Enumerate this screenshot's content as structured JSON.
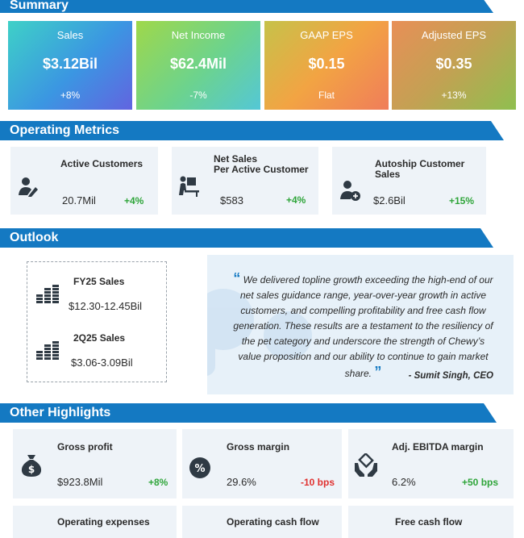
{
  "sections": {
    "summary": "Summary",
    "operating_metrics": "Operating Metrics",
    "outlook": "Outlook",
    "other_highlights": "Other Highlights"
  },
  "summary_cards": [
    {
      "title": "Sales",
      "value": "$3.12Bil",
      "change": "+8%"
    },
    {
      "title": "Net Income",
      "value": "$62.4Mil",
      "change": "-7%"
    },
    {
      "title": "GAAP EPS",
      "value": "$0.15",
      "change": "Flat"
    },
    {
      "title": "Adjusted EPS",
      "value": "$0.35",
      "change": "+13%"
    }
  ],
  "operating_metrics": [
    {
      "title": "Active Customers",
      "value": "20.7Mil",
      "change": "+4%",
      "icon": "user-edit-icon"
    },
    {
      "title_line1": "Net Sales",
      "title_line2": "Per Active Customer",
      "value": "$583",
      "change": "+4%",
      "icon": "desk-user-icon"
    },
    {
      "title": "Autoship Customer Sales",
      "value": "$2.6Bil",
      "change": "+15%",
      "icon": "user-add-icon"
    }
  ],
  "outlook": [
    {
      "title": "FY25 Sales",
      "value": "$12.30-12.45Bil",
      "icon": "coin-stacks-icon"
    },
    {
      "title": "2Q25 Sales",
      "value": "$3.06-3.09Bil",
      "icon": "coin-stacks-icon"
    }
  ],
  "quote": {
    "open_mark": "“",
    "text": "We delivered topline growth exceeding the high-end of our net sales guidance range, year-over-year growth in active customers, and compelling profitability and free cash flow generation. These results are a testament to the resiliency of the pet category and underscore the strength of Chewy’s value proposition and our ability to continue to gain market share.",
    "close_mark": "”",
    "author": "- Sumit Singh, CEO"
  },
  "highlights": [
    {
      "title": "Gross profit",
      "value": "$923.8Mil",
      "change": "+8%",
      "icon": "money-bag-icon"
    },
    {
      "title": "Gross margin",
      "value": "29.6%",
      "change": "-10 bps",
      "icon": "percent-icon"
    },
    {
      "title": "Adj. EBITDA margin",
      "value": "6.2%",
      "change": "+50 bps",
      "icon": "hands-box-icon"
    }
  ],
  "highlights_row2": [
    {
      "title": "Operating expenses"
    },
    {
      "title": "Operating cash flow"
    },
    {
      "title": "Free cash flow"
    }
  ],
  "colors": {
    "banner": "#1479c2",
    "positive": "#2fa53a",
    "negative": "#e0312f",
    "card_bg": "#eef3f8"
  }
}
